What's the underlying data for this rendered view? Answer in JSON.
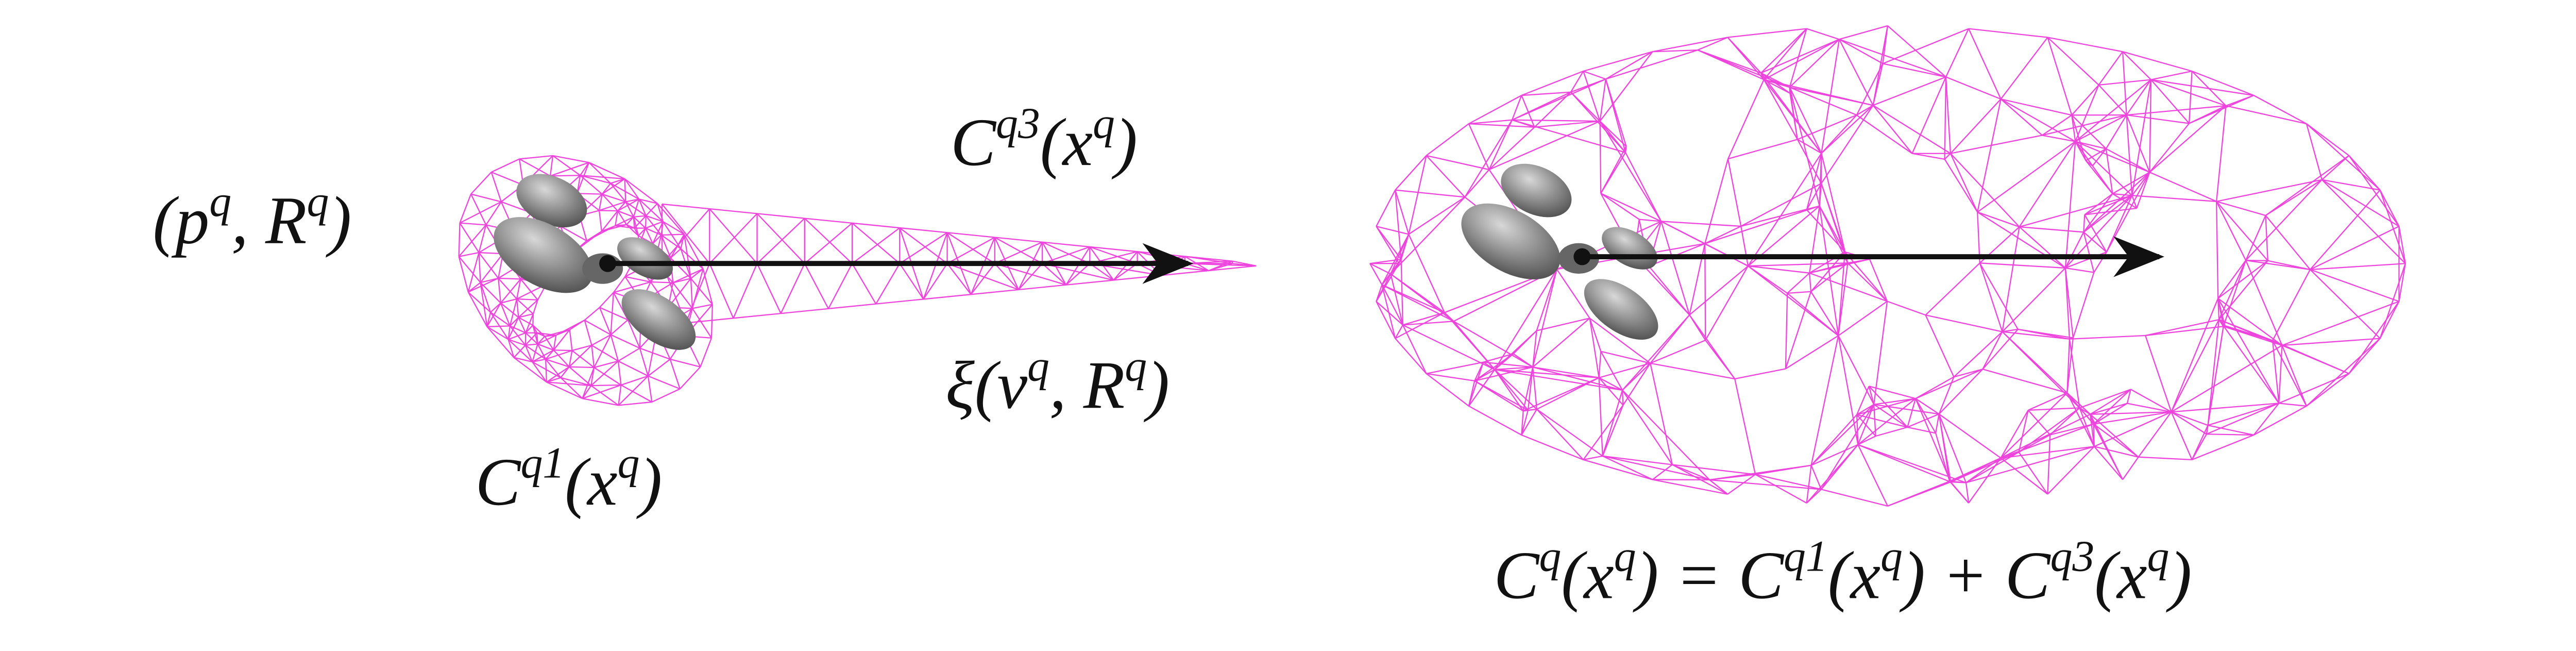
{
  "labels": [
    {
      "parts": [
        {
          "text": "(p"
        },
        {
          "sup": "q"
        },
        {
          "text": ", R"
        },
        {
          "sup": "q"
        },
        {
          "text": ")"
        }
      ]
    },
    {
      "parts": [
        {
          "text": "C"
        },
        {
          "sup": "q3"
        },
        {
          "text": "(x"
        },
        {
          "sup": "q"
        },
        {
          "text": ")"
        }
      ]
    },
    {
      "parts": [
        {
          "text": "ξ(v"
        },
        {
          "sup": "q"
        },
        {
          "text": ", R"
        },
        {
          "sup": "q"
        },
        {
          "text": ")"
        }
      ]
    },
    {
      "parts": [
        {
          "text": "C"
        },
        {
          "sup": "q1"
        },
        {
          "text": "(x"
        },
        {
          "sup": "q"
        },
        {
          "text": ")"
        }
      ]
    },
    {
      "parts": [
        {
          "text": "C"
        },
        {
          "sup": "q"
        },
        {
          "text": "(x"
        },
        {
          "sup": "q"
        },
        {
          "text": ") = C"
        },
        {
          "sup": "q1"
        },
        {
          "text": "(x"
        },
        {
          "sup": "q"
        },
        {
          "text": ") + C"
        },
        {
          "sup": "q3"
        },
        {
          "text": "(x"
        },
        {
          "sup": "q"
        },
        {
          "text": ")"
        }
      ]
    }
  ]
}
